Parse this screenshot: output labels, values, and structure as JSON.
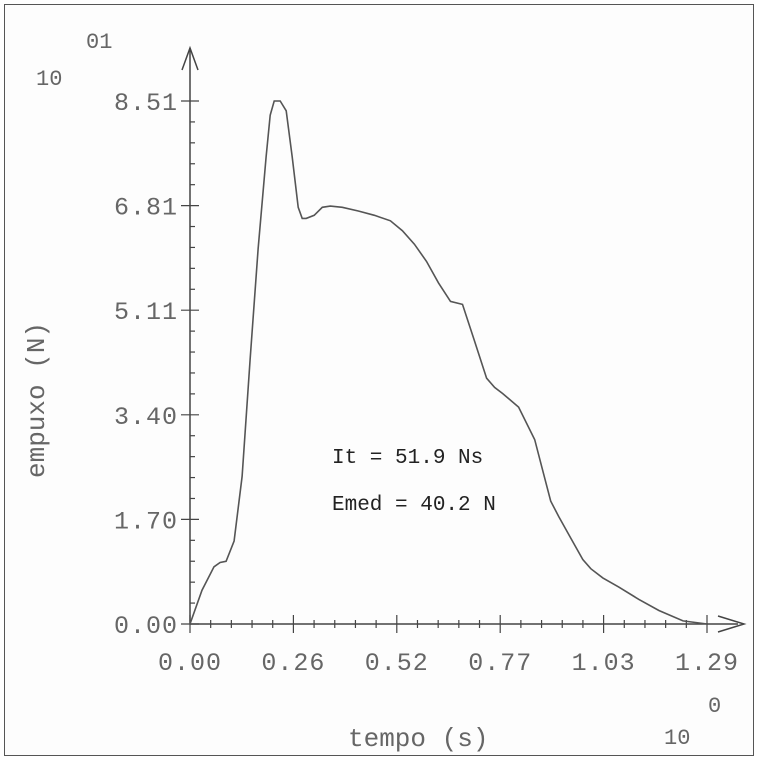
{
  "chart_data": {
    "type": "line",
    "xlabel": "tempo (s)",
    "ylabel": "empuxo (N)",
    "x_multiplier_base": "10",
    "x_multiplier_exp": "0",
    "y_multiplier_base": "10",
    "y_multiplier_exp": "01",
    "xlim": [
      0.0,
      1.29
    ],
    "ylim": [
      0.0,
      8.51
    ],
    "x_ticks": [
      "0.00",
      "0.26",
      "0.52",
      "0.77",
      "1.03",
      "1.29"
    ],
    "y_ticks": [
      "0.00",
      "1.70",
      "3.40",
      "5.11",
      "6.81",
      "8.51"
    ],
    "x_tick_values": [
      0.0,
      0.258,
      0.516,
      0.774,
      1.032,
      1.29
    ],
    "y_tick_values": [
      0.0,
      1.702,
      3.404,
      5.106,
      6.808,
      8.51
    ],
    "annotations": [
      "It = 51.9 Ns",
      "Emed = 40.2 N"
    ],
    "grid": false,
    "series": [
      {
        "x": [
          0.0,
          0.03,
          0.06,
          0.075,
          0.09,
          0.11,
          0.13,
          0.15,
          0.17,
          0.19,
          0.2,
          0.21,
          0.225,
          0.24,
          0.255,
          0.27,
          0.28,
          0.29,
          0.31,
          0.33,
          0.35,
          0.38,
          0.42,
          0.46,
          0.5,
          0.53,
          0.56,
          0.59,
          0.62,
          0.65,
          0.68,
          0.71,
          0.74,
          0.76,
          0.78,
          0.82,
          0.86,
          0.88,
          0.9,
          0.92,
          0.95,
          0.98,
          1.0,
          1.03,
          1.07,
          1.12,
          1.17,
          1.23,
          1.29
        ],
        "y": [
          0.0,
          0.55,
          0.93,
          1.0,
          1.02,
          1.35,
          2.4,
          4.3,
          6.1,
          7.6,
          8.28,
          8.51,
          8.51,
          8.35,
          7.6,
          6.78,
          6.6,
          6.6,
          6.65,
          6.78,
          6.8,
          6.78,
          6.72,
          6.65,
          6.56,
          6.4,
          6.18,
          5.9,
          5.55,
          5.25,
          5.2,
          4.6,
          4.0,
          3.85,
          3.75,
          3.53,
          3.0,
          2.5,
          2.0,
          1.75,
          1.4,
          1.05,
          0.9,
          0.75,
          0.6,
          0.4,
          0.22,
          0.05,
          0.0
        ]
      }
    ]
  }
}
